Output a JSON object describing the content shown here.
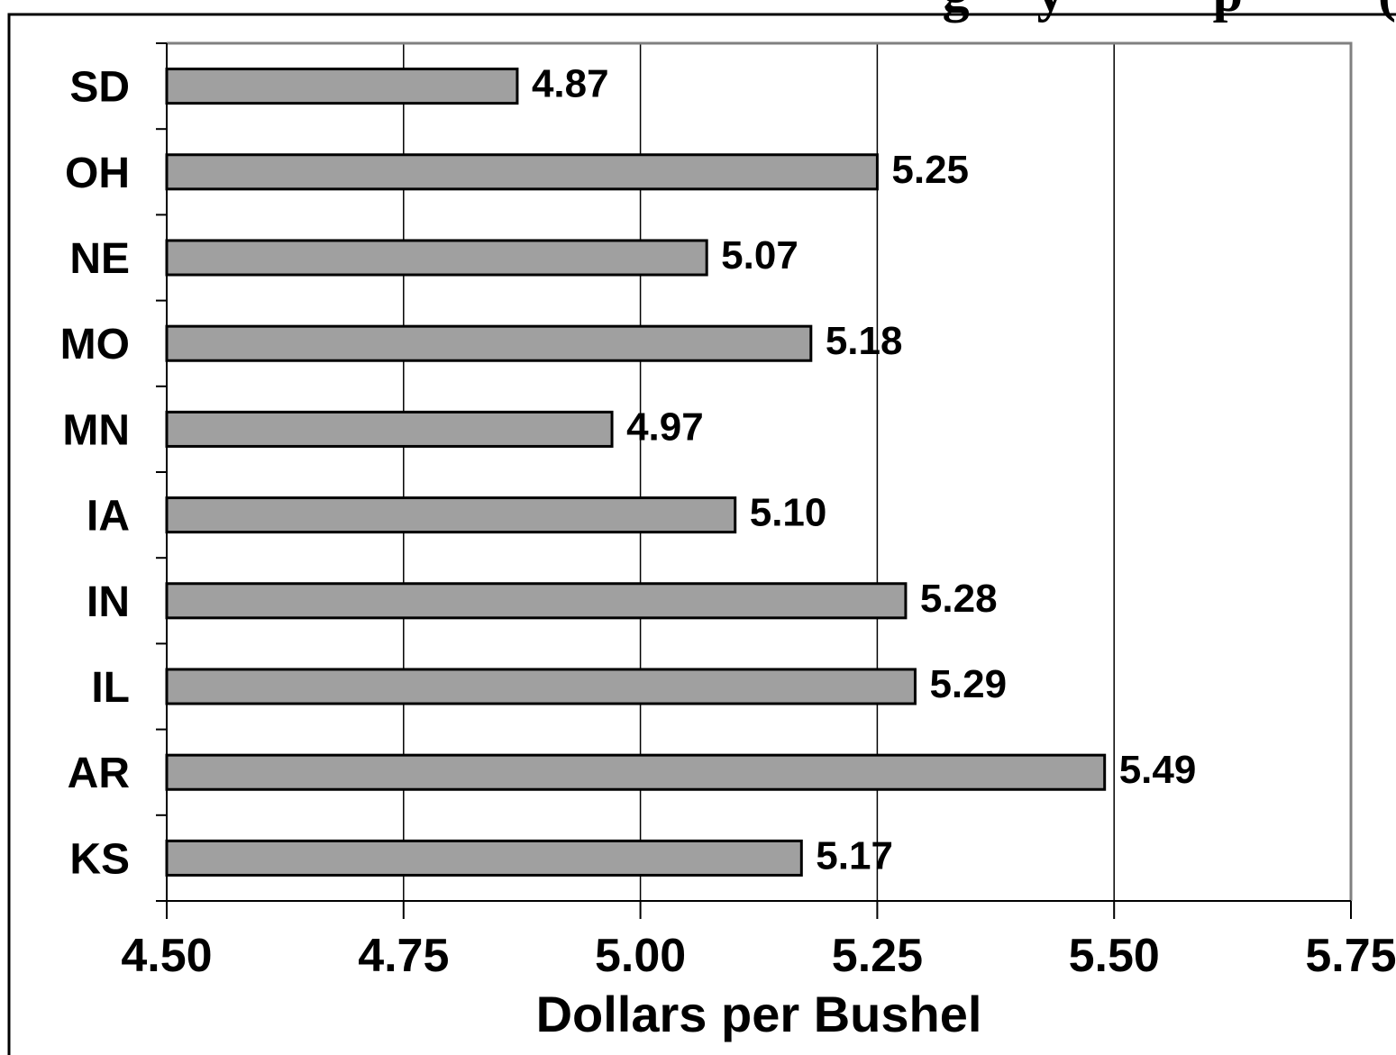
{
  "chart_data": {
    "type": "bar",
    "orientation": "horizontal",
    "title": "",
    "title_partial": "g     y           p          (",
    "xlabel": "Dollars per Bushel",
    "ylabel": "",
    "categories": [
      "SD",
      "OH",
      "NE",
      "MO",
      "MN",
      "IA",
      "IN",
      "IL",
      "AR",
      "KS"
    ],
    "values": [
      4.87,
      5.25,
      5.07,
      5.18,
      4.97,
      5.1,
      5.28,
      5.29,
      5.49,
      5.17
    ],
    "value_labels": [
      "4.87",
      "5.25",
      "5.07",
      "5.18",
      "4.97",
      "5.10",
      "5.28",
      "5.29",
      "5.49",
      "5.17"
    ],
    "xlim": [
      4.5,
      5.75
    ],
    "xticks": [
      4.5,
      4.75,
      5.0,
      5.25,
      5.5,
      5.75
    ],
    "xtick_labels": [
      "4.50",
      "4.75",
      "5.00",
      "5.25",
      "5.50",
      "5.75"
    ],
    "grid": "vertical",
    "legend": "none",
    "bar_color": "#a0a0a0",
    "border_color": "#808080"
  }
}
